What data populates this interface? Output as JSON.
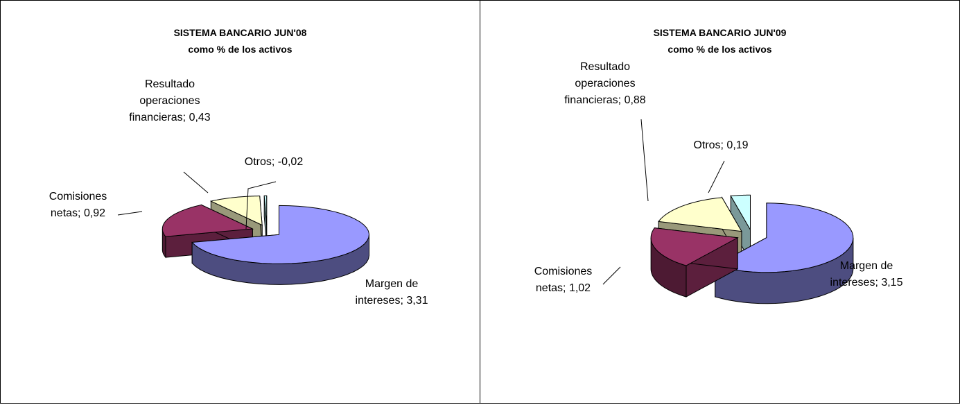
{
  "chart_data": [
    {
      "type": "pie3d",
      "title": "SISTEMA BANCARIO JUN'08",
      "subtitle": "como % de los activos",
      "categories": [
        "Margen de intereses",
        "Comisiones netas",
        "Resultado operaciones financieras",
        "Otros"
      ],
      "values": [
        3.31,
        0.92,
        0.43,
        -0.02
      ],
      "value_labels": [
        "Margen de intereses; 3,31",
        "Comisiones netas; 0,92",
        "Resultado operaciones financieras; 0,43",
        "Otros; -0,02"
      ],
      "colors": [
        "#9999ff",
        "#993366",
        "#ffffcc",
        "#ccffff"
      ]
    },
    {
      "type": "pie3d",
      "title": "SISTEMA BANCARIO JUN'09",
      "subtitle": "como % de los activos",
      "categories": [
        "Margen de intereses",
        "Comisiones netas",
        "Resultado operaciones financieras",
        "Otros"
      ],
      "values": [
        3.15,
        1.02,
        0.88,
        0.19
      ],
      "value_labels": [
        "Margen de intereses; 3,15",
        "Comisiones netas; 1,02",
        "Resultado operaciones financieras; 0,88",
        "Otros; 0,19"
      ],
      "colors": [
        "#9999ff",
        "#993366",
        "#ffffcc",
        "#ccffff"
      ]
    }
  ]
}
